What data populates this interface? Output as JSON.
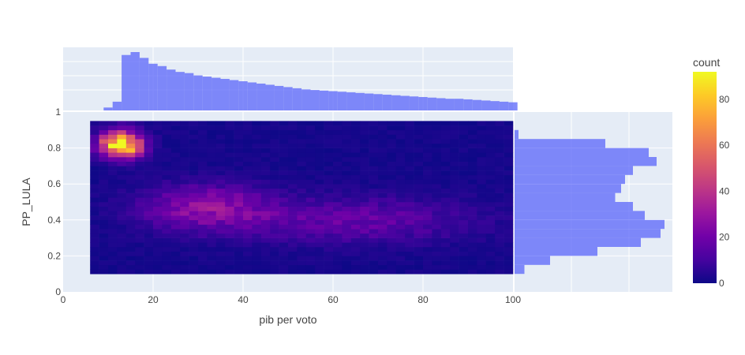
{
  "chart_data": {
    "type": "heatmap",
    "title": "",
    "xlabel": "pib per voto",
    "ylabel": "PP_LULA",
    "xlim": [
      0,
      100
    ],
    "ylim": [
      0,
      1
    ],
    "x_ticks": [
      "0",
      "20",
      "40",
      "60",
      "80",
      "100"
    ],
    "y_ticks": [
      "0",
      "0.2",
      "0.4",
      "0.6",
      "0.8",
      "1"
    ],
    "colorbar": {
      "title": "count",
      "range": [
        0,
        92
      ],
      "ticks": [
        "0",
        "20",
        "40",
        "60",
        "80"
      ],
      "colors": [
        "#0d0887",
        "#46039f",
        "#7201a8",
        "#9c179e",
        "#bd3786",
        "#d8576b",
        "#ed7953",
        "#fb9f3a",
        "#fdca26",
        "#f0f921"
      ]
    },
    "heatmap": {
      "x_range": [
        6,
        100
      ],
      "y_range": [
        0.1,
        0.95
      ],
      "peak": {
        "x": 13,
        "y": 0.82,
        "count": 92
      }
    },
    "histogram_x": {
      "bin_start": 9,
      "bin_width": 2,
      "counts": [
        5,
        15,
        95,
        100,
        90,
        80,
        76,
        70,
        66,
        64,
        60,
        58,
        56,
        54,
        52,
        50,
        48,
        46,
        44,
        42,
        40,
        38,
        36,
        35,
        34,
        33,
        32,
        31,
        30,
        29,
        28,
        27,
        26,
        25,
        24,
        23,
        22,
        21,
        20,
        20,
        19,
        18,
        17,
        16,
        15,
        14
      ]
    },
    "histogram_y": {
      "bin_start": 0.1,
      "bin_width": 0.05,
      "counts": [
        5,
        18,
        42,
        64,
        74,
        76,
        66,
        60,
        51,
        54,
        56,
        60,
        72,
        68,
        46,
        2,
        0
      ]
    }
  }
}
